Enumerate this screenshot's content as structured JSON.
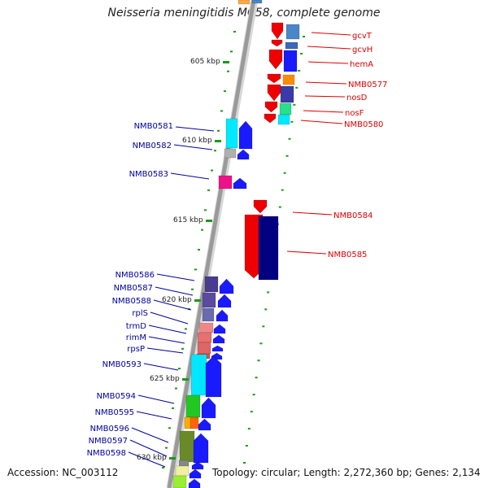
{
  "title": "Neisseria meningitidis MC58, complete genome",
  "footer": {
    "accession": "Accession: NC_003112",
    "topology": "Topology: circular; Length: 2,272,360 bp; Genes: 2,134"
  },
  "scale_ticks": [
    "605 kbp",
    "610 kbp",
    "615 kbp",
    "620 kbp",
    "625 kbp",
    "630 kbp"
  ],
  "colors": {
    "backbone": "#9a9a9a",
    "forward_label": "#0000a0",
    "reverse_label": "#dd0000",
    "tick_green": "#1a9a1a"
  },
  "reverse_genes": [
    "gcvT",
    "gcvH",
    "hemA",
    "NMB0577",
    "nosD",
    "nosF",
    "NMB0580",
    "NMB0584",
    "NMB0585"
  ],
  "forward_genes": [
    "NMB0581",
    "NMB0582",
    "NMB0583",
    "NMB0586",
    "NMB0587",
    "NMB0588",
    "rplS",
    "trmD",
    "rimM",
    "rpsP",
    "NMB0593",
    "NMB0594",
    "NMB0595",
    "NMB0596",
    "NMB0597",
    "NMB0598"
  ]
}
